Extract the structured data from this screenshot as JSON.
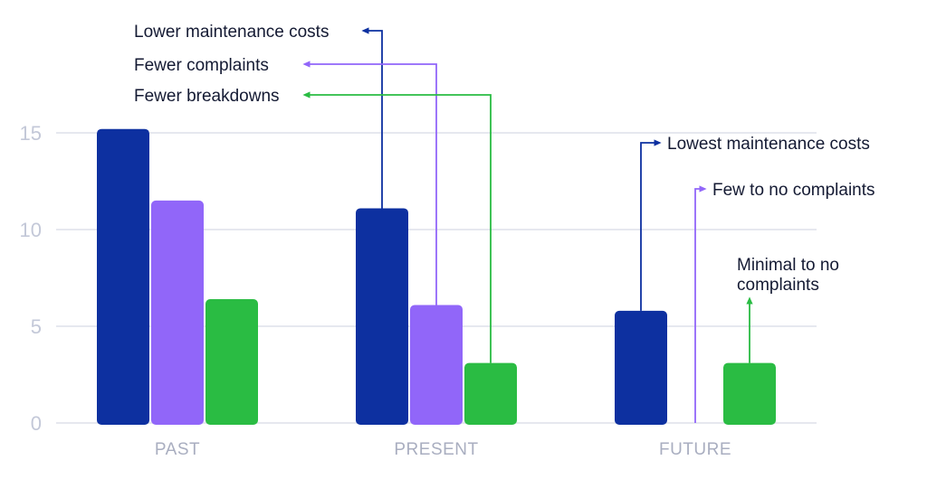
{
  "chart_data": {
    "type": "bar",
    "categories": [
      "PAST",
      "PRESENT",
      "FUTURE"
    ],
    "series": [
      {
        "color": "#0d30a0",
        "values": [
          15.2,
          11.1,
          5.8
        ]
      },
      {
        "color": "#9166f9",
        "values": [
          11.5,
          6.1,
          0
        ]
      },
      {
        "color": "#2abc43",
        "values": [
          6.4,
          3.1,
          3.1
        ]
      }
    ],
    "ylim": [
      0,
      16
    ],
    "yticks": [
      0,
      5,
      10,
      15
    ],
    "grid": true,
    "legend": "none",
    "annotations": {
      "present": [
        {
          "text": "Lower maintenance costs",
          "series": 0,
          "color": "#0d30a0"
        },
        {
          "text": "Fewer complaints",
          "series": 1,
          "color": "#9166f9"
        },
        {
          "text": "Fewer breakdowns",
          "series": 2,
          "color": "#2abc43"
        }
      ],
      "future": [
        {
          "text": "Lowest maintenance costs",
          "series": 0,
          "color": "#0d30a0"
        },
        {
          "text": "Few to no complaints",
          "series": 1,
          "color": "#9166f9"
        },
        {
          "lines": [
            "Minimal to no",
            "complaints"
          ],
          "series": 2,
          "color": "#2abc43"
        }
      ]
    }
  }
}
